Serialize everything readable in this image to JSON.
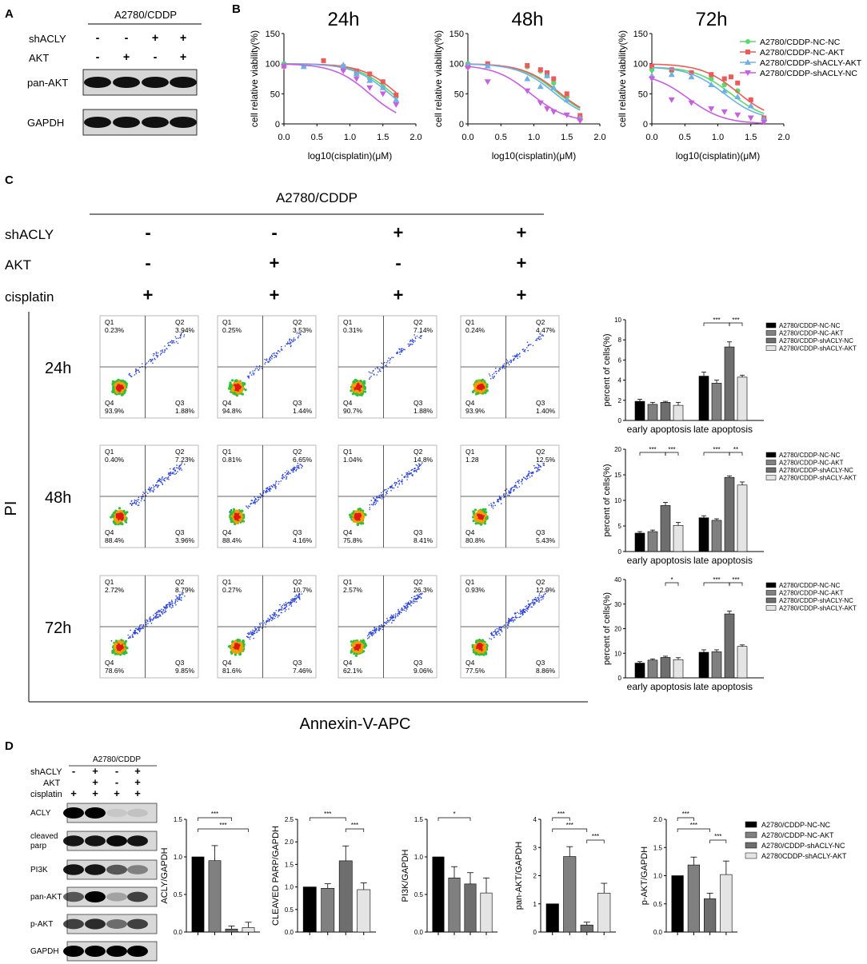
{
  "panels": {
    "A": "A",
    "B": "B",
    "C": "C",
    "D": "D"
  },
  "colors": {
    "nc_nc": "#5bd86a",
    "nc_akt": "#ee5a5a",
    "sh_akt": "#6fb0e6",
    "sh_nc": "#c65fe0"
  },
  "panel_a": {
    "group": "A2780/CDDP",
    "row_labels": [
      "shACLY",
      "AKT"
    ],
    "signs": [
      [
        "-",
        "-",
        "+",
        "+"
      ],
      [
        "-",
        "+",
        "-",
        "+"
      ]
    ],
    "bands": [
      "pan-AKT",
      "GAPDH"
    ]
  },
  "panel_b": {
    "legend": [
      "A2780/CDDP-NC-NC",
      "A2780/CDDP-NC-AKT",
      "A2780/CDDP-shACLY-AKT",
      "A2780/CDDP-shACLY-NC"
    ]
  },
  "panel_c": {
    "group": "A2780/CDDP",
    "row_labels": [
      "shACLY",
      "AKT",
      "cisplatin"
    ],
    "signs": [
      [
        "-",
        "-",
        "+",
        "+"
      ],
      [
        "-",
        "+",
        "-",
        "+"
      ],
      [
        "+",
        "+",
        "+",
        "+"
      ]
    ],
    "pi_label": "PI",
    "xaxis_label": "Annexin-V-APC",
    "times": [
      "24h",
      "48h",
      "72h"
    ],
    "quadrants": [
      "Q1",
      "Q2",
      "Q3",
      "Q4"
    ],
    "flow": [
      [
        [
          "0.23%",
          "3.94%",
          "1.88%",
          "93.9%"
        ],
        [
          "0.25%",
          "3.53%",
          "1.44%",
          "94.8%"
        ],
        [
          "0.31%",
          "7.14%",
          "1.88%",
          "90.7%"
        ],
        [
          "0.24%",
          "4.47%",
          "1.40%",
          "93.9%"
        ]
      ],
      [
        [
          "0.40%",
          "7.23%",
          "3.96%",
          "88.4%"
        ],
        [
          "0.81%",
          "6.65%",
          "4.16%",
          "88.4%"
        ],
        [
          "1.04%",
          "14.8%",
          "8.41%",
          "75.8%"
        ],
        [
          "1.28",
          "12.5%",
          "5.43%",
          "80.8%"
        ]
      ],
      [
        [
          "2.72%",
          "8.79%",
          "9.85%",
          "78.6%"
        ],
        [
          "0.27%",
          "10.7%",
          "7.46%",
          "81.6%"
        ],
        [
          "2.57%",
          "26.3%",
          "9.06%",
          "62.1%"
        ],
        [
          "0.93%",
          "12.9%",
          "8.86%",
          "77.5%"
        ]
      ]
    ],
    "bar_legend": [
      "A2780/CDDP-NC-NC",
      "A2780/CDDP-NC-AKT",
      "A2780/CDDP-shACLY-NC",
      "A2780/CDDP-shACLY-AKT"
    ],
    "bar_ylabel": "percent of cells(%)",
    "bar_categories": [
      "early apoptosis",
      "late apoptosis"
    ]
  },
  "panel_d": {
    "group": "A2780/CDDP",
    "row_labels": [
      "shACLY",
      "AKT",
      "cisplatin"
    ],
    "signs": [
      [
        "-",
        "+",
        "-",
        "+"
      ],
      [
        "-",
        "+",
        "-",
        "+"
      ],
      [
        "+",
        "+",
        "+",
        "+"
      ]
    ],
    "bands": [
      "ACLY",
      "cleaved\nparp",
      "PI3K",
      "pan-AKT",
      "p-AKT",
      "GAPDH"
    ],
    "legend": [
      "A2780/CDDP-NC-NC",
      "A2780/CDDP-NC-AKT",
      "A2780/CDDP-shACLY-NC",
      "A2780CDDP-shACLY-AKT"
    ]
  },
  "chart_data": [
    {
      "type": "scatter",
      "title": "24h",
      "xlabel": "log10(cisplatin)(μM)",
      "ylabel": "cell relative viability(%)",
      "xlim": [
        0,
        2
      ],
      "ylim": [
        0,
        150
      ],
      "xticks": [
        "0.0",
        "0.5",
        "1.0",
        "1.5",
        "2.0"
      ],
      "yticks": [
        "0",
        "50",
        "100",
        "150"
      ],
      "series": [
        {
          "name": "A2780/CDDP-NC-NC",
          "x": [
            0,
            0.3,
            0.9,
            1.1,
            1.3,
            1.5,
            1.7
          ],
          "y": [
            100,
            96,
            90,
            83,
            75,
            62,
            45
          ],
          "fit": [
            100,
            0.1,
            1.65
          ]
        },
        {
          "name": "A2780/CDDP-NC-AKT",
          "x": [
            0,
            0.6,
            0.9,
            1.1,
            1.3,
            1.5,
            1.7
          ],
          "y": [
            96,
            105,
            95,
            88,
            83,
            70,
            48
          ],
          "fit": [
            100,
            0.1,
            1.72
          ]
        },
        {
          "name": "A2780/CDDP-shACLY-AKT",
          "x": [
            0,
            0.3,
            0.9,
            1.1,
            1.3,
            1.5,
            1.7
          ],
          "y": [
            98,
            95,
            98,
            84,
            72,
            60,
            40
          ],
          "fit": [
            100,
            0.1,
            1.6
          ]
        },
        {
          "name": "A2780/CDDP-shACLY-NC",
          "x": [
            0,
            0.9,
            1.1,
            1.3,
            1.5,
            1.7
          ],
          "y": [
            95,
            88,
            75,
            60,
            50,
            32
          ],
          "fit": [
            100,
            0.1,
            1.3
          ]
        }
      ]
    },
    {
      "type": "scatter",
      "title": "48h",
      "xlabel": "log10(cisplatin)(μM)",
      "ylabel": "cell relative viability(%)",
      "xlim": [
        0,
        2
      ],
      "ylim": [
        0,
        150
      ],
      "xticks": [
        "0.0",
        "0.5",
        "1.0",
        "1.5",
        "2.0"
      ],
      "yticks": [
        "0",
        "50",
        "100",
        "150"
      ],
      "series": [
        {
          "name": "A2780/CDDP-NC-NC",
          "x": [
            0,
            0.3,
            0.9,
            1.1,
            1.2,
            1.3,
            1.5,
            1.7
          ],
          "y": [
            100,
            98,
            95,
            88,
            80,
            68,
            45,
            12
          ],
          "fit": [
            100,
            5,
            1.35
          ]
        },
        {
          "name": "A2780/CDDP-NC-AKT",
          "x": [
            0,
            0.3,
            0.9,
            1.1,
            1.2,
            1.3,
            1.5,
            1.7
          ],
          "y": [
            96,
            100,
            97,
            90,
            85,
            75,
            50,
            14
          ],
          "fit": [
            100,
            5,
            1.38
          ]
        },
        {
          "name": "A2780/CDDP-shACLY-AKT",
          "x": [
            0,
            0.3,
            0.9,
            1.1,
            1.2,
            1.3,
            1.5,
            1.7
          ],
          "y": [
            98,
            96,
            75,
            62,
            80,
            60,
            40,
            10
          ],
          "fit": [
            100,
            5,
            1.3
          ]
        },
        {
          "name": "A2780/CDDP-shACLY-NC",
          "x": [
            0,
            0.3,
            0.9,
            1.1,
            1.2,
            1.3,
            1.5,
            1.7
          ],
          "y": [
            93,
            70,
            55,
            35,
            25,
            20,
            15,
            5
          ],
          "fit": [
            98,
            3,
            0.95
          ]
        }
      ]
    },
    {
      "type": "scatter",
      "title": "72h",
      "xlabel": "log10(cisplatin)(μM)",
      "ylabel": "cell relative viability(%)",
      "xlim": [
        0,
        2
      ],
      "ylim": [
        0,
        150
      ],
      "xticks": [
        "0.0",
        "0.5",
        "1.0",
        "1.5",
        "2.0"
      ],
      "yticks": [
        "0",
        "50",
        "100",
        "150"
      ],
      "series": [
        {
          "name": "A2780/CDDP-NC-NC",
          "x": [
            0,
            0.3,
            0.6,
            0.9,
            1.1,
            1.3,
            1.5,
            1.7
          ],
          "y": [
            90,
            88,
            85,
            75,
            65,
            55,
            40,
            8
          ],
          "fit": [
            95,
            5,
            1.2
          ]
        },
        {
          "name": "A2780/CDDP-NC-AKT",
          "x": [
            0,
            0.3,
            0.6,
            0.9,
            1.1,
            1.2,
            1.3,
            1.5,
            1.7
          ],
          "y": [
            96,
            90,
            85,
            82,
            75,
            78,
            68,
            40,
            10
          ],
          "fit": [
            100,
            5,
            1.3
          ]
        },
        {
          "name": "A2780/CDDP-shACLY-AKT",
          "x": [
            0,
            0.3,
            0.6,
            0.9,
            1.1,
            1.3,
            1.5,
            1.7
          ],
          "y": [
            80,
            82,
            78,
            65,
            55,
            45,
            30,
            8
          ],
          "fit": [
            95,
            5,
            1.1
          ]
        },
        {
          "name": "A2780/CDDP-shACLY-NC",
          "x": [
            0,
            0.3,
            0.6,
            0.9,
            1.1,
            1.3,
            1.5,
            1.7
          ],
          "y": [
            75,
            40,
            35,
            25,
            20,
            15,
            10,
            3
          ],
          "fit": [
            85,
            0,
            0.55
          ]
        }
      ]
    },
    {
      "type": "bar",
      "panel": "C-24h",
      "categories": [
        "early apoptosis",
        "late apoptosis"
      ],
      "ylabel": "percent of cells(%)",
      "ylim": [
        0,
        10
      ],
      "yticks": [
        "0",
        "2",
        "4",
        "6",
        "8",
        "10"
      ],
      "series": [
        {
          "name": "A2780/CDDP-NC-NC",
          "values": [
            1.9,
            4.4
          ],
          "err": [
            0.2,
            0.4
          ]
        },
        {
          "name": "A2780/CDDP-NC-AKT",
          "values": [
            1.6,
            3.7
          ],
          "err": [
            0.2,
            0.3
          ]
        },
        {
          "name": "A2780/CDDP-shACLY-NC",
          "values": [
            1.8,
            7.3
          ],
          "err": [
            0.1,
            0.5
          ]
        },
        {
          "name": "A2780/CDDP-shACLY-AKT",
          "values": [
            1.5,
            4.3
          ],
          "err": [
            0.3,
            0.2
          ]
        }
      ],
      "sig": [
        {
          "cat": 1,
          "from": 0,
          "to": 2,
          "label": "***"
        },
        {
          "cat": 1,
          "from": 2,
          "to": 3,
          "label": "***"
        }
      ]
    },
    {
      "type": "bar",
      "panel": "C-48h",
      "categories": [
        "early apoptosis",
        "late apoptosis"
      ],
      "ylabel": "percent of cells(%)",
      "ylim": [
        0,
        20
      ],
      "yticks": [
        "0",
        "5",
        "10",
        "15",
        "20"
      ],
      "series": [
        {
          "name": "A2780/CDDP-NC-NC",
          "values": [
            3.6,
            6.6
          ],
          "err": [
            0.3,
            0.4
          ]
        },
        {
          "name": "A2780/CDDP-NC-AKT",
          "values": [
            3.9,
            6.1
          ],
          "err": [
            0.3,
            0.3
          ]
        },
        {
          "name": "A2780/CDDP-shACLY-NC",
          "values": [
            9.0,
            14.5
          ],
          "err": [
            0.6,
            0.3
          ]
        },
        {
          "name": "A2780/CDDP-shACLY-AKT",
          "values": [
            5.1,
            13.0
          ],
          "err": [
            0.6,
            0.6
          ]
        }
      ],
      "sig": [
        {
          "cat": 0,
          "from": 0,
          "to": 2,
          "label": "***"
        },
        {
          "cat": 0,
          "from": 2,
          "to": 3,
          "label": "***"
        },
        {
          "cat": 1,
          "from": 0,
          "to": 2,
          "label": "***"
        },
        {
          "cat": 1,
          "from": 2,
          "to": 3,
          "label": "**"
        }
      ]
    },
    {
      "type": "bar",
      "panel": "C-72h",
      "categories": [
        "early apoptosis",
        "late apoptosis"
      ],
      "ylabel": "percent of cells(%)",
      "ylim": [
        0,
        40
      ],
      "yticks": [
        "0",
        "10",
        "20",
        "30",
        "40"
      ],
      "series": [
        {
          "name": "A2780/CDDP-NC-NC",
          "values": [
            6.0,
            10.4
          ],
          "err": [
            0.6,
            1.0
          ]
        },
        {
          "name": "A2780/CDDP-NC-AKT",
          "values": [
            7.2,
            10.6
          ],
          "err": [
            0.5,
            0.8
          ]
        },
        {
          "name": "A2780/CDDP-shACLY-NC",
          "values": [
            8.3,
            26.0
          ],
          "err": [
            0.5,
            1.2
          ]
        },
        {
          "name": "A2780/CDDP-shACLY-AKT",
          "values": [
            7.4,
            12.8
          ],
          "err": [
            0.8,
            0.6
          ]
        }
      ],
      "sig": [
        {
          "cat": 0,
          "from": 2,
          "to": 3,
          "label": "*"
        },
        {
          "cat": 1,
          "from": 0,
          "to": 2,
          "label": "***"
        },
        {
          "cat": 1,
          "from": 2,
          "to": 3,
          "label": "***"
        }
      ]
    },
    {
      "type": "bar",
      "panel": "D-ACLY",
      "ylabel": "ACLY/GAPDH",
      "ylim": [
        0,
        1.5
      ],
      "yticks": [
        "0.0",
        "0.5",
        "1.0",
        "1.5"
      ],
      "categories": [
        "NC-NC",
        "NC-AKT",
        "shACLY-NC",
        "shACLY-AKT"
      ],
      "values": [
        1.0,
        0.95,
        0.04,
        0.06
      ],
      "err": [
        0,
        0.2,
        0.04,
        0.07
      ],
      "sig": [
        {
          "from": 0,
          "to": 2,
          "label": "***"
        },
        {
          "from": 0,
          "to": 3,
          "label": "***"
        }
      ]
    },
    {
      "type": "bar",
      "panel": "D-PARP",
      "ylabel": "CLEAVED PARP/GAPDH",
      "ylim": [
        0,
        2.5
      ],
      "yticks": [
        "0.0",
        "0.5",
        "1.0",
        "1.5",
        "2.0",
        "2.5"
      ],
      "categories": [
        "NC-NC",
        "NC-AKT",
        "shACLY-NC",
        "shACLY-AKT"
      ],
      "values": [
        1.0,
        0.97,
        1.58,
        0.94
      ],
      "err": [
        0,
        0.1,
        0.33,
        0.15
      ],
      "sig": [
        {
          "from": 0,
          "to": 2,
          "label": "***"
        },
        {
          "from": 2,
          "to": 3,
          "label": "***"
        }
      ]
    },
    {
      "type": "bar",
      "panel": "D-PI3K",
      "ylabel": "PI3K/GAPDH",
      "ylim": [
        0,
        1.5
      ],
      "yticks": [
        "0.0",
        "0.5",
        "1.0",
        "1.5"
      ],
      "categories": [
        "NC-NC",
        "NC-AKT",
        "shACLY-NC",
        "shACLY-AKT"
      ],
      "values": [
        1.0,
        0.72,
        0.64,
        0.52
      ],
      "err": [
        0,
        0.15,
        0.15,
        0.2
      ],
      "sig": [
        {
          "from": 0,
          "to": 2,
          "label": "*"
        }
      ]
    },
    {
      "type": "bar",
      "panel": "D-panAKT",
      "ylabel": "pan-AKT/GAPDH",
      "ylim": [
        0,
        4
      ],
      "yticks": [
        "0",
        "1",
        "2",
        "3",
        "4"
      ],
      "categories": [
        "NC-NC",
        "NC-AKT",
        "shACLY-NC",
        "shACLY-AKT"
      ],
      "values": [
        1.0,
        2.68,
        0.25,
        1.38
      ],
      "err": [
        0,
        0.35,
        0.1,
        0.35
      ],
      "sig": [
        {
          "from": 0,
          "to": 1,
          "label": "***"
        },
        {
          "from": 0,
          "to": 2,
          "label": "***"
        },
        {
          "from": 2,
          "to": 3,
          "label": "***"
        }
      ]
    },
    {
      "type": "bar",
      "panel": "D-pAKT",
      "ylabel": "p-AKT/GAPDH",
      "ylim": [
        0,
        2
      ],
      "yticks": [
        "0.0",
        "0.5",
        "1.0",
        "1.5",
        "2.0"
      ],
      "categories": [
        "NC-NC",
        "NC-AKT",
        "shACLY-NC",
        "shACLY-AKT"
      ],
      "values": [
        1.0,
        1.19,
        0.59,
        1.02
      ],
      "err": [
        0,
        0.14,
        0.1,
        0.24
      ],
      "sig": [
        {
          "from": 0,
          "to": 1,
          "label": "***"
        },
        {
          "from": 0,
          "to": 2,
          "label": "***"
        },
        {
          "from": 2,
          "to": 3,
          "label": "***"
        }
      ]
    }
  ]
}
